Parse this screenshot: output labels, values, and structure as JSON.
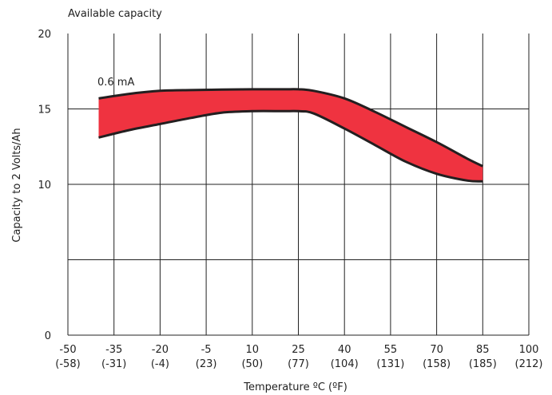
{
  "chart_data": {
    "type": "area",
    "title": "Available capacity",
    "xlabel": "Temperature ºC (ºF)",
    "ylabel": "Capacity to 2 Volts/Ah",
    "xlim": [
      -50,
      100
    ],
    "ylim": [
      0,
      20
    ],
    "grid": true,
    "x_ticks": [
      {
        "c": "-50",
        "f": "(-58)"
      },
      {
        "c": "-35",
        "f": "(-31)"
      },
      {
        "c": "-20",
        "f": "(-4)"
      },
      {
        "c": "-5",
        "f": "(23)"
      },
      {
        "c": "10",
        "f": "(50)"
      },
      {
        "c": "25",
        "f": "(77)"
      },
      {
        "c": "40",
        "f": "(104)"
      },
      {
        "c": "55",
        "f": "(131)"
      },
      {
        "c": "70",
        "f": "(158)"
      },
      {
        "c": "85",
        "f": "(185)"
      },
      {
        "c": "100",
        "f": "(212)"
      }
    ],
    "y_ticks": [
      "0",
      "10",
      "15",
      "20"
    ],
    "band_label": "0.6 mA",
    "band_color": "#ef3340",
    "series": [
      {
        "name": "upper",
        "x": [
          -40,
          -30,
          -20,
          -10,
          0,
          10,
          20,
          25,
          30,
          40,
          50,
          60,
          70,
          80,
          85
        ],
        "y": [
          15.7,
          16.0,
          16.2,
          16.25,
          16.28,
          16.3,
          16.3,
          16.3,
          16.2,
          15.7,
          14.8,
          13.8,
          12.8,
          11.7,
          11.2
        ]
      },
      {
        "name": "lower",
        "x": [
          -40,
          -30,
          -20,
          -10,
          0,
          10,
          20,
          25,
          30,
          40,
          50,
          60,
          70,
          80,
          85
        ],
        "y": [
          13.1,
          13.6,
          14.0,
          14.4,
          14.75,
          14.85,
          14.85,
          14.85,
          14.7,
          13.7,
          12.6,
          11.5,
          10.7,
          10.25,
          10.2
        ]
      }
    ]
  }
}
